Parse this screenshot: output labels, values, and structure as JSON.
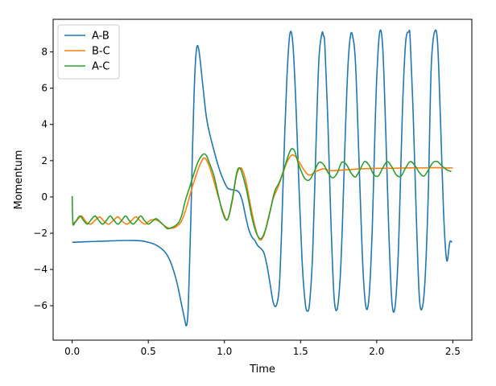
{
  "chart_data": {
    "type": "line",
    "title": "",
    "xlabel": "Time",
    "ylabel": "Momentum",
    "xlim": [
      -0.125,
      2.625
    ],
    "ylim": [
      -7.9,
      9.8
    ],
    "xticks": [
      0.0,
      0.5,
      1.0,
      1.5,
      2.0,
      2.5
    ],
    "xtick_labels": [
      "0.0",
      "0.5",
      "1.0",
      "1.5",
      "2.0",
      "2.5"
    ],
    "yticks": [
      -6,
      -4,
      -2,
      0,
      2,
      4,
      6,
      8
    ],
    "ytick_labels": [
      "−6",
      "−4",
      "−2",
      "0",
      "2",
      "4",
      "6",
      "8"
    ],
    "grid": false,
    "legend_position": "top-left",
    "series": [
      {
        "name": "A-B",
        "color": "#1f77b4",
        "x": [
          0.0,
          0.1,
          0.2,
          0.3,
          0.4,
          0.45,
          0.5,
          0.55,
          0.6,
          0.63,
          0.66,
          0.69,
          0.72,
          0.74,
          0.75,
          0.76,
          0.77,
          0.78,
          0.79,
          0.8,
          0.81,
          0.82,
          0.83,
          0.84,
          0.86,
          0.88,
          0.9,
          0.93,
          0.96,
          0.99,
          1.02,
          1.05,
          1.08,
          1.1,
          1.12,
          1.14,
          1.16,
          1.18,
          1.2,
          1.22,
          1.24,
          1.26,
          1.28,
          1.3,
          1.32,
          1.34,
          1.36,
          1.375,
          1.39,
          1.41,
          1.43,
          1.45,
          1.47,
          1.49,
          1.51,
          1.53,
          1.545,
          1.56,
          1.58,
          1.6,
          1.62,
          1.64,
          1.65,
          1.66,
          1.68,
          1.7,
          1.72,
          1.74,
          1.76,
          1.775,
          1.79,
          1.81,
          1.83,
          1.85,
          1.86,
          1.87,
          1.89,
          1.91,
          1.93,
          1.95,
          1.97,
          1.985,
          2.0,
          2.02,
          2.04,
          2.06,
          2.08,
          2.1,
          2.12,
          2.14,
          2.155,
          2.17,
          2.19,
          2.21,
          2.22,
          2.24,
          2.26,
          2.28,
          2.3,
          2.32,
          2.34,
          2.35,
          2.36,
          2.38,
          2.4,
          2.42,
          2.44,
          2.46,
          2.48,
          2.495
        ],
        "y": [
          -2.5,
          -2.47,
          -2.44,
          -2.41,
          -2.4,
          -2.42,
          -2.5,
          -2.65,
          -2.95,
          -3.3,
          -3.9,
          -4.8,
          -6.0,
          -6.8,
          -7.1,
          -6.5,
          -4.0,
          -1.0,
          2.5,
          5.5,
          7.5,
          8.3,
          8.2,
          7.6,
          6.0,
          4.5,
          3.6,
          2.6,
          1.7,
          1.0,
          0.5,
          0.4,
          0.35,
          0.2,
          -0.3,
          -1.1,
          -1.8,
          -2.2,
          -2.4,
          -2.7,
          -2.85,
          -3.1,
          -3.8,
          -4.8,
          -5.8,
          -6.0,
          -5.0,
          -2.0,
          2.0,
          6.5,
          9.0,
          8.4,
          5.0,
          0.5,
          -3.5,
          -5.8,
          -6.3,
          -5.8,
          -3.0,
          2.5,
          7.5,
          9.0,
          8.9,
          8.3,
          4.0,
          -1.5,
          -5.5,
          -6.2,
          -4.5,
          -1.5,
          2.5,
          7.0,
          9.0,
          8.5,
          7.5,
          5.5,
          0.5,
          -4.0,
          -6.1,
          -5.5,
          -2.0,
          2.5,
          6.5,
          9.1,
          8.2,
          3.5,
          -2.0,
          -5.8,
          -6.1,
          -3.5,
          0.5,
          5.0,
          8.5,
          9.1,
          8.7,
          4.5,
          -1.0,
          -5.5,
          -6.1,
          -4.2,
          0.5,
          4.5,
          7.5,
          9.1,
          8.5,
          4.0,
          -1.0,
          -3.5,
          -2.5,
          -2.5
        ]
      },
      {
        "name": "B-C",
        "color": "#ff7f0e",
        "x": [
          0.0,
          0.03,
          0.06,
          0.09,
          0.12,
          0.15,
          0.18,
          0.21,
          0.24,
          0.27,
          0.3,
          0.33,
          0.36,
          0.39,
          0.42,
          0.45,
          0.48,
          0.51,
          0.54,
          0.57,
          0.6,
          0.63,
          0.66,
          0.69,
          0.72,
          0.75,
          0.78,
          0.81,
          0.84,
          0.87,
          0.9,
          0.93,
          0.96,
          0.99,
          1.02,
          1.05,
          1.08,
          1.11,
          1.14,
          1.17,
          1.2,
          1.23,
          1.26,
          1.29,
          1.32,
          1.35,
          1.38,
          1.41,
          1.44,
          1.47,
          1.5,
          1.53,
          1.56,
          1.6,
          1.65,
          1.7,
          1.8,
          1.9,
          2.0,
          2.1,
          2.2,
          2.3,
          2.4,
          2.45,
          2.5
        ],
        "y": [
          -1.5,
          -1.3,
          -1.05,
          -1.35,
          -1.5,
          -1.3,
          -1.1,
          -1.35,
          -1.5,
          -1.3,
          -1.1,
          -1.35,
          -1.5,
          -1.3,
          -1.1,
          -1.35,
          -1.5,
          -1.3,
          -1.25,
          -1.35,
          -1.55,
          -1.7,
          -1.72,
          -1.6,
          -1.3,
          -0.6,
          0.3,
          1.1,
          1.8,
          2.15,
          1.7,
          0.9,
          0.0,
          -0.8,
          -1.25,
          -0.3,
          1.2,
          1.6,
          0.9,
          -0.4,
          -1.6,
          -2.35,
          -2.1,
          -1.1,
          -0.1,
          0.5,
          1.2,
          1.9,
          2.3,
          2.2,
          1.8,
          1.4,
          1.2,
          1.4,
          1.55,
          1.45,
          1.5,
          1.55,
          1.58,
          1.58,
          1.6,
          1.6,
          1.62,
          1.6,
          1.6
        ]
      },
      {
        "name": "A-C",
        "color": "#2ca02c",
        "x": [
          0.0,
          0.005,
          0.02,
          0.05,
          0.075,
          0.1,
          0.125,
          0.15,
          0.175,
          0.2,
          0.225,
          0.25,
          0.275,
          0.3,
          0.325,
          0.35,
          0.375,
          0.4,
          0.425,
          0.45,
          0.475,
          0.5,
          0.525,
          0.55,
          0.575,
          0.6,
          0.625,
          0.65,
          0.675,
          0.7,
          0.72,
          0.74,
          0.77,
          0.8,
          0.83,
          0.86,
          0.88,
          0.9,
          0.93,
          0.96,
          0.99,
          1.02,
          1.05,
          1.08,
          1.1,
          1.12,
          1.15,
          1.18,
          1.21,
          1.24,
          1.27,
          1.3,
          1.33,
          1.36,
          1.39,
          1.42,
          1.44,
          1.46,
          1.48,
          1.5,
          1.53,
          1.56,
          1.59,
          1.62,
          1.65,
          1.68,
          1.71,
          1.74,
          1.77,
          1.8,
          1.83,
          1.86,
          1.89,
          1.92,
          1.95,
          1.98,
          2.01,
          2.04,
          2.07,
          2.1,
          2.13,
          2.16,
          2.19,
          2.22,
          2.25,
          2.28,
          2.31,
          2.34,
          2.37,
          2.4,
          2.43,
          2.46,
          2.49
        ],
        "y": [
          0.05,
          -1.45,
          -1.4,
          -1.05,
          -1.3,
          -1.5,
          -1.25,
          -1.05,
          -1.3,
          -1.5,
          -1.3,
          -1.05,
          -1.3,
          -1.5,
          -1.3,
          -1.05,
          -1.3,
          -1.5,
          -1.3,
          -1.05,
          -1.3,
          -1.5,
          -1.35,
          -1.2,
          -1.35,
          -1.55,
          -1.75,
          -1.7,
          -1.6,
          -1.4,
          -1.0,
          -0.3,
          0.5,
          1.3,
          2.0,
          2.35,
          2.3,
          1.9,
          1.2,
          0.1,
          -0.9,
          -1.25,
          -0.2,
          1.3,
          1.6,
          1.2,
          0.2,
          -1.1,
          -2.0,
          -2.3,
          -1.8,
          -0.8,
          0.3,
          0.8,
          1.5,
          2.3,
          2.65,
          2.55,
          2.0,
          1.5,
          1.0,
          0.95,
          1.4,
          1.9,
          1.8,
          1.35,
          1.05,
          1.3,
          1.9,
          1.8,
          1.35,
          1.1,
          1.5,
          1.95,
          1.75,
          1.25,
          1.15,
          1.6,
          1.95,
          1.65,
          1.2,
          1.15,
          1.6,
          1.95,
          1.75,
          1.35,
          1.15,
          1.5,
          1.9,
          1.95,
          1.7,
          1.5,
          1.4
        ]
      }
    ]
  }
}
